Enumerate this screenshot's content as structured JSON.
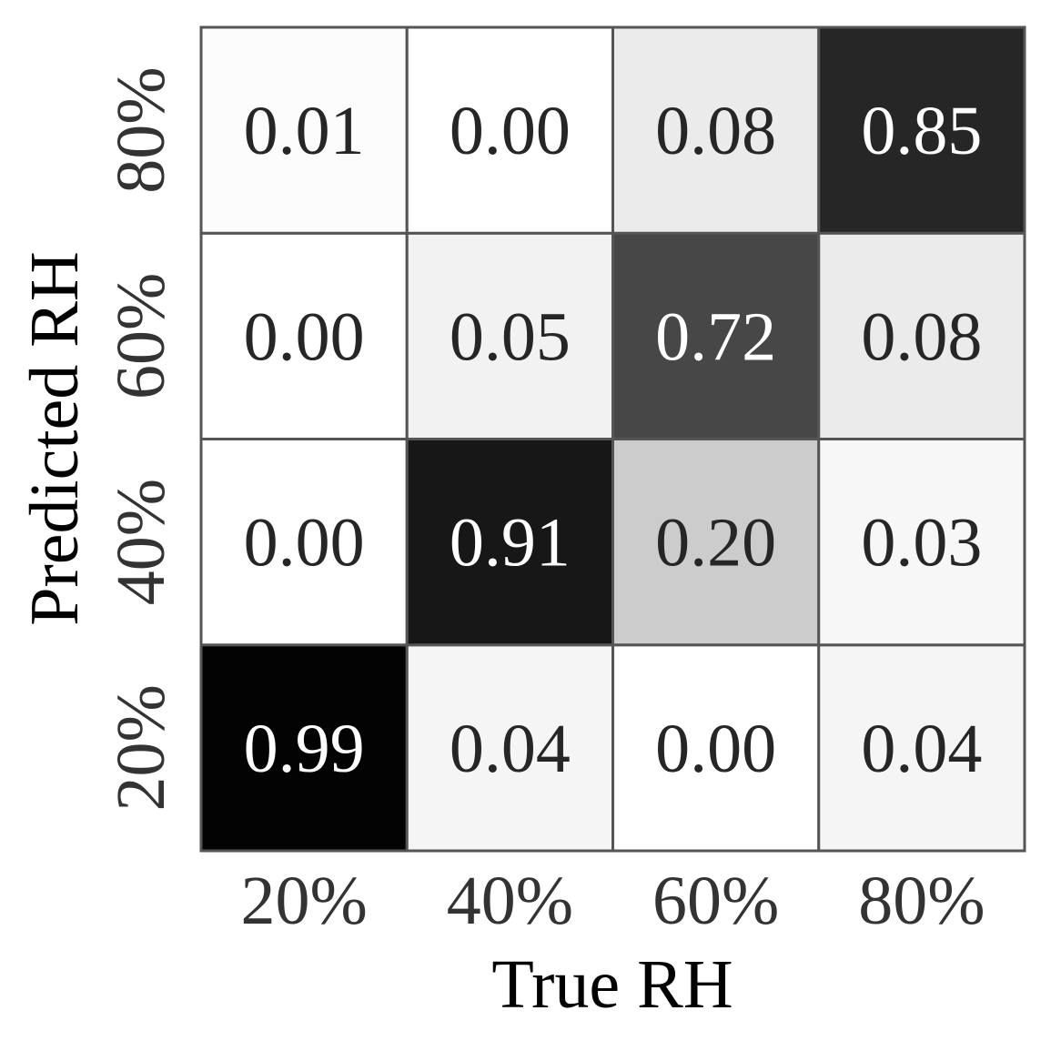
{
  "chart_data": {
    "type": "heatmap",
    "title": "",
    "xlabel": "True RH",
    "ylabel": "Predicted RH",
    "x_categories": [
      "20%",
      "40%",
      "60%",
      "80%"
    ],
    "y_categories": [
      "20%",
      "40%",
      "60%",
      "80%"
    ],
    "y_order": "bottom-to-top",
    "values": [
      [
        0.99,
        0.04,
        0.0,
        0.04
      ],
      [
        0.0,
        0.91,
        0.2,
        0.03
      ],
      [
        0.0,
        0.05,
        0.72,
        0.08
      ],
      [
        0.01,
        0.0,
        0.08,
        0.85
      ]
    ],
    "value_labels": [
      [
        "0.99",
        "0.04",
        "0.00",
        "0.04"
      ],
      [
        "0.00",
        "0.91",
        "0.20",
        "0.03"
      ],
      [
        "0.00",
        "0.05",
        "0.72",
        "0.08"
      ],
      [
        "0.01",
        "0.00",
        "0.08",
        "0.85"
      ]
    ],
    "colormap": "Greys",
    "vmin": 0,
    "vmax": 1,
    "grid": true,
    "colors": {
      "cell_border": "#555555",
      "label_text": "#333333",
      "axis_title": "#000000",
      "light_text": "#ffffff",
      "dark_text": "#262626"
    }
  }
}
